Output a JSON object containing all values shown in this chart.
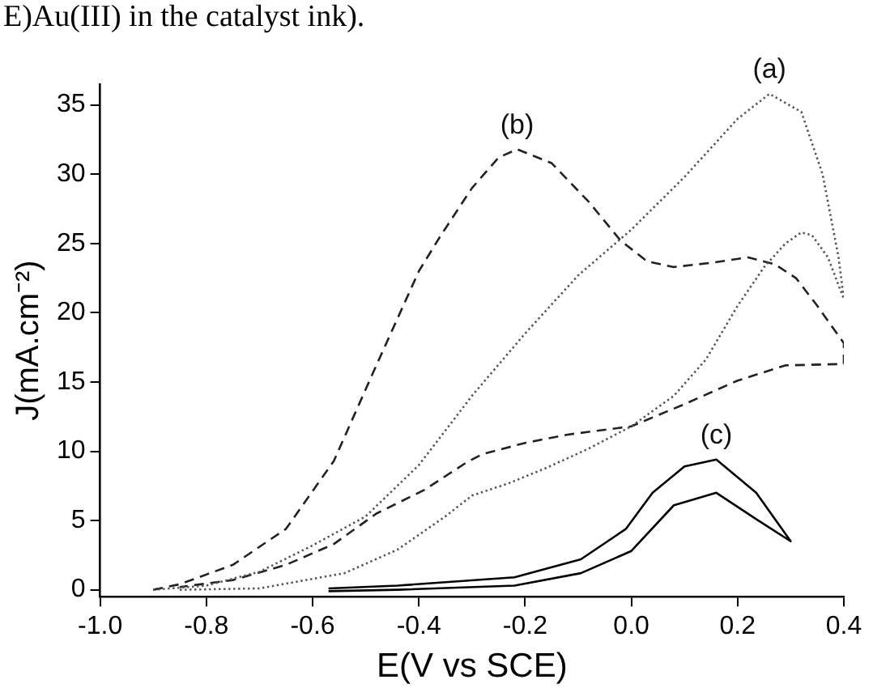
{
  "chart_data": {
    "type": "line",
    "xlabel": "E(V vs SCE)",
    "ylabel": "J(mA.cm⁻²)",
    "xlim": [
      -1.0,
      0.4
    ],
    "ylim": [
      -0.5,
      36.5
    ],
    "xticks": [
      {
        "value": -1.0,
        "label": "-1.0"
      },
      -0.8,
      -0.6,
      -0.4,
      -0.2,
      {
        "value": 0,
        "label": "0.0"
      },
      0.2,
      0.4
    ],
    "yticks": [
      0,
      5,
      10,
      15,
      20,
      25,
      30,
      35
    ],
    "grid": false,
    "legend": false,
    "marker": "none",
    "series": [
      {
        "color": "#555555",
        "line_style": "dotted",
        "x": [
          -0.9,
          -0.8,
          -0.7,
          -0.6,
          -0.5,
          -0.4,
          -0.3,
          -0.2,
          -0.1,
          0,
          0.1,
          0.2,
          0.26,
          0.32,
          0.36,
          0.39,
          0.4,
          0.37,
          0.34,
          0.32,
          0.29,
          0.25,
          0.2,
          0.14,
          0.08,
          0,
          -0.08,
          -0.16,
          -0.23,
          -0.3,
          -0.35,
          -0.44,
          -0.54,
          -0.7,
          -0.85
        ],
        "values": [
          0,
          0.3,
          1.3,
          3.2,
          5.3,
          9,
          14,
          18.5,
          22.7,
          26,
          29.8,
          34,
          35.8,
          34.5,
          30,
          24,
          21,
          24,
          25.6,
          25.8,
          25,
          23.3,
          20.5,
          16.6,
          14,
          11.8,
          10.2,
          8.8,
          7.7,
          6.8,
          5.3,
          2.9,
          1.2,
          0.1,
          0
        ]
      },
      {
        "color": "#222222",
        "line_style": "dashed",
        "x": [
          -0.9,
          -0.85,
          -0.75,
          -0.65,
          -0.56,
          -0.48,
          -0.4,
          -0.36,
          -0.3,
          -0.25,
          -0.215,
          -0.15,
          -0.08,
          -0.02,
          0.03,
          0.08,
          0.15,
          0.22,
          0.27,
          0.31,
          0.35,
          0.4,
          0.4,
          0.29,
          0.2,
          0.1,
          0,
          -0.12,
          -0.2,
          -0.28,
          -0.31,
          -0.39,
          -0.48,
          -0.56,
          -0.65,
          -0.75,
          -0.85
        ],
        "values": [
          0,
          0.4,
          1.8,
          4.4,
          9.3,
          16.2,
          23,
          25.5,
          29,
          31.2,
          31.8,
          30.8,
          28,
          25.2,
          23.7,
          23.3,
          23.6,
          24,
          23.5,
          22.5,
          20.5,
          17.8,
          16.3,
          16.2,
          15.1,
          13.4,
          11.8,
          11.2,
          10.6,
          9.8,
          9.2,
          7.2,
          5.5,
          3.3,
          1.8,
          0.7,
          0.2
        ]
      },
      {
        "color": "#000000",
        "line_style": "solid",
        "x": [
          -0.57,
          -0.44,
          -0.22,
          -0.095,
          -0.01,
          0.04,
          0.1,
          0.16,
          0.235,
          0.3,
          0.235,
          0.16,
          0.08,
          0,
          -0.095,
          -0.22,
          -0.44,
          -0.57
        ],
        "values": [
          0.1,
          0.3,
          0.9,
          2.2,
          4.4,
          7,
          8.9,
          9.4,
          7,
          3.5,
          5.1,
          7,
          6.1,
          2.8,
          1.2,
          0.3,
          0,
          -0.1
        ]
      }
    ],
    "annotations": [
      "E)Au(III) in the catalyst ink).",
      {
        "text": "(a)",
        "x": 0.26,
        "y": 35.8
      },
      {
        "text": "(b)",
        "x": -0.215,
        "y": 31.8
      },
      {
        "text": "(c)",
        "x": 0.16,
        "y": 9.4
      }
    ]
  }
}
